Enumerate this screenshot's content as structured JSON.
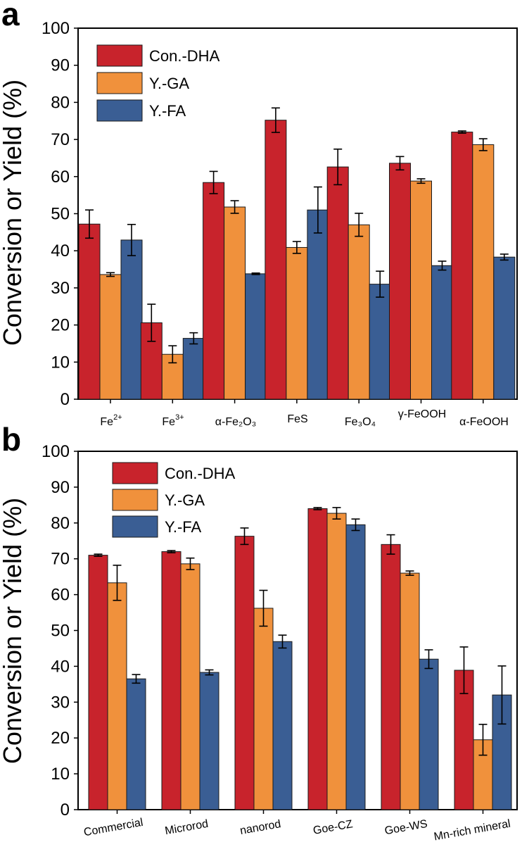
{
  "colors": {
    "con_dha": "#c8232c",
    "y_ga": "#f0913c",
    "y_fa": "#3a5e94"
  },
  "chart_data": [
    {
      "panel": "a",
      "type": "bar",
      "ylabel": "Conversion or Yield (%)",
      "ylim": [
        0,
        100
      ],
      "yticks": [
        0,
        10,
        20,
        30,
        40,
        50,
        60,
        70,
        80,
        90,
        100
      ],
      "legend_position": "top-left",
      "categories": [
        {
          "label": "Fe",
          "sup": "2+",
          "label_text": "Fe2+"
        },
        {
          "label": "Fe",
          "sup": "3+",
          "label_text": "Fe3+"
        },
        {
          "label": "α-Fe₂O₃",
          "label_text": "α-Fe2O3"
        },
        {
          "label": "FeS",
          "label_text": "FeS"
        },
        {
          "label": "Fe₃O₄",
          "label_text": "Fe3O4"
        },
        {
          "label": "γ-FeOOH",
          "label_text": "γ-FeOOH"
        },
        {
          "label": "α-FeOOH",
          "label_text": "α-FeOOH"
        }
      ],
      "series": [
        {
          "name": "Con.-DHA",
          "color_key": "con_dha",
          "values": [
            47.2,
            20.6,
            58.4,
            75.2,
            62.6,
            63.6,
            72.0
          ],
          "errors": [
            3.8,
            5.0,
            3.0,
            3.3,
            4.8,
            1.8,
            0.3
          ]
        },
        {
          "name": "Y.-GA",
          "color_key": "y_ga",
          "values": [
            33.6,
            12.1,
            51.8,
            40.9,
            47.0,
            58.8,
            68.6
          ],
          "errors": [
            0.5,
            2.3,
            1.7,
            1.6,
            3.1,
            0.6,
            1.6
          ]
        },
        {
          "name": "Y.-FA",
          "color_key": "y_fa",
          "values": [
            42.9,
            16.4,
            33.8,
            51.0,
            31.0,
            36.0,
            38.3
          ],
          "errors": [
            4.2,
            1.5,
            0.2,
            6.2,
            3.5,
            1.2,
            0.8
          ]
        }
      ]
    },
    {
      "panel": "b",
      "type": "bar",
      "ylabel": "Conversion or Yield (%)",
      "ylim": [
        0,
        100
      ],
      "yticks": [
        0,
        10,
        20,
        30,
        40,
        50,
        60,
        70,
        80,
        90,
        100
      ],
      "legend_position": "top-left",
      "categories": [
        {
          "label_text": "Commercial"
        },
        {
          "label_text": "Microrod"
        },
        {
          "label_text": "nanorod"
        },
        {
          "label_text": "Goe-CZ"
        },
        {
          "label_text": "Goe-WS"
        },
        {
          "label_text": "Mn-rich mineral"
        }
      ],
      "series": [
        {
          "name": "Con.-DHA",
          "color_key": "con_dha",
          "values": [
            71.0,
            72.0,
            76.3,
            84.0,
            74.0,
            38.9
          ],
          "errors": [
            0.3,
            0.3,
            2.3,
            0.3,
            2.7,
            6.5
          ]
        },
        {
          "name": "Y.-GA",
          "color_key": "y_ga",
          "values": [
            63.3,
            68.6,
            56.2,
            82.7,
            66.0,
            19.5
          ],
          "errors": [
            4.9,
            1.6,
            5.0,
            1.6,
            0.6,
            4.3
          ]
        },
        {
          "name": "Y.-FA",
          "color_key": "y_fa",
          "values": [
            36.5,
            38.3,
            46.9,
            79.5,
            42.0,
            32.0
          ],
          "errors": [
            1.2,
            0.7,
            1.8,
            1.6,
            2.6,
            8.1
          ]
        }
      ]
    }
  ]
}
